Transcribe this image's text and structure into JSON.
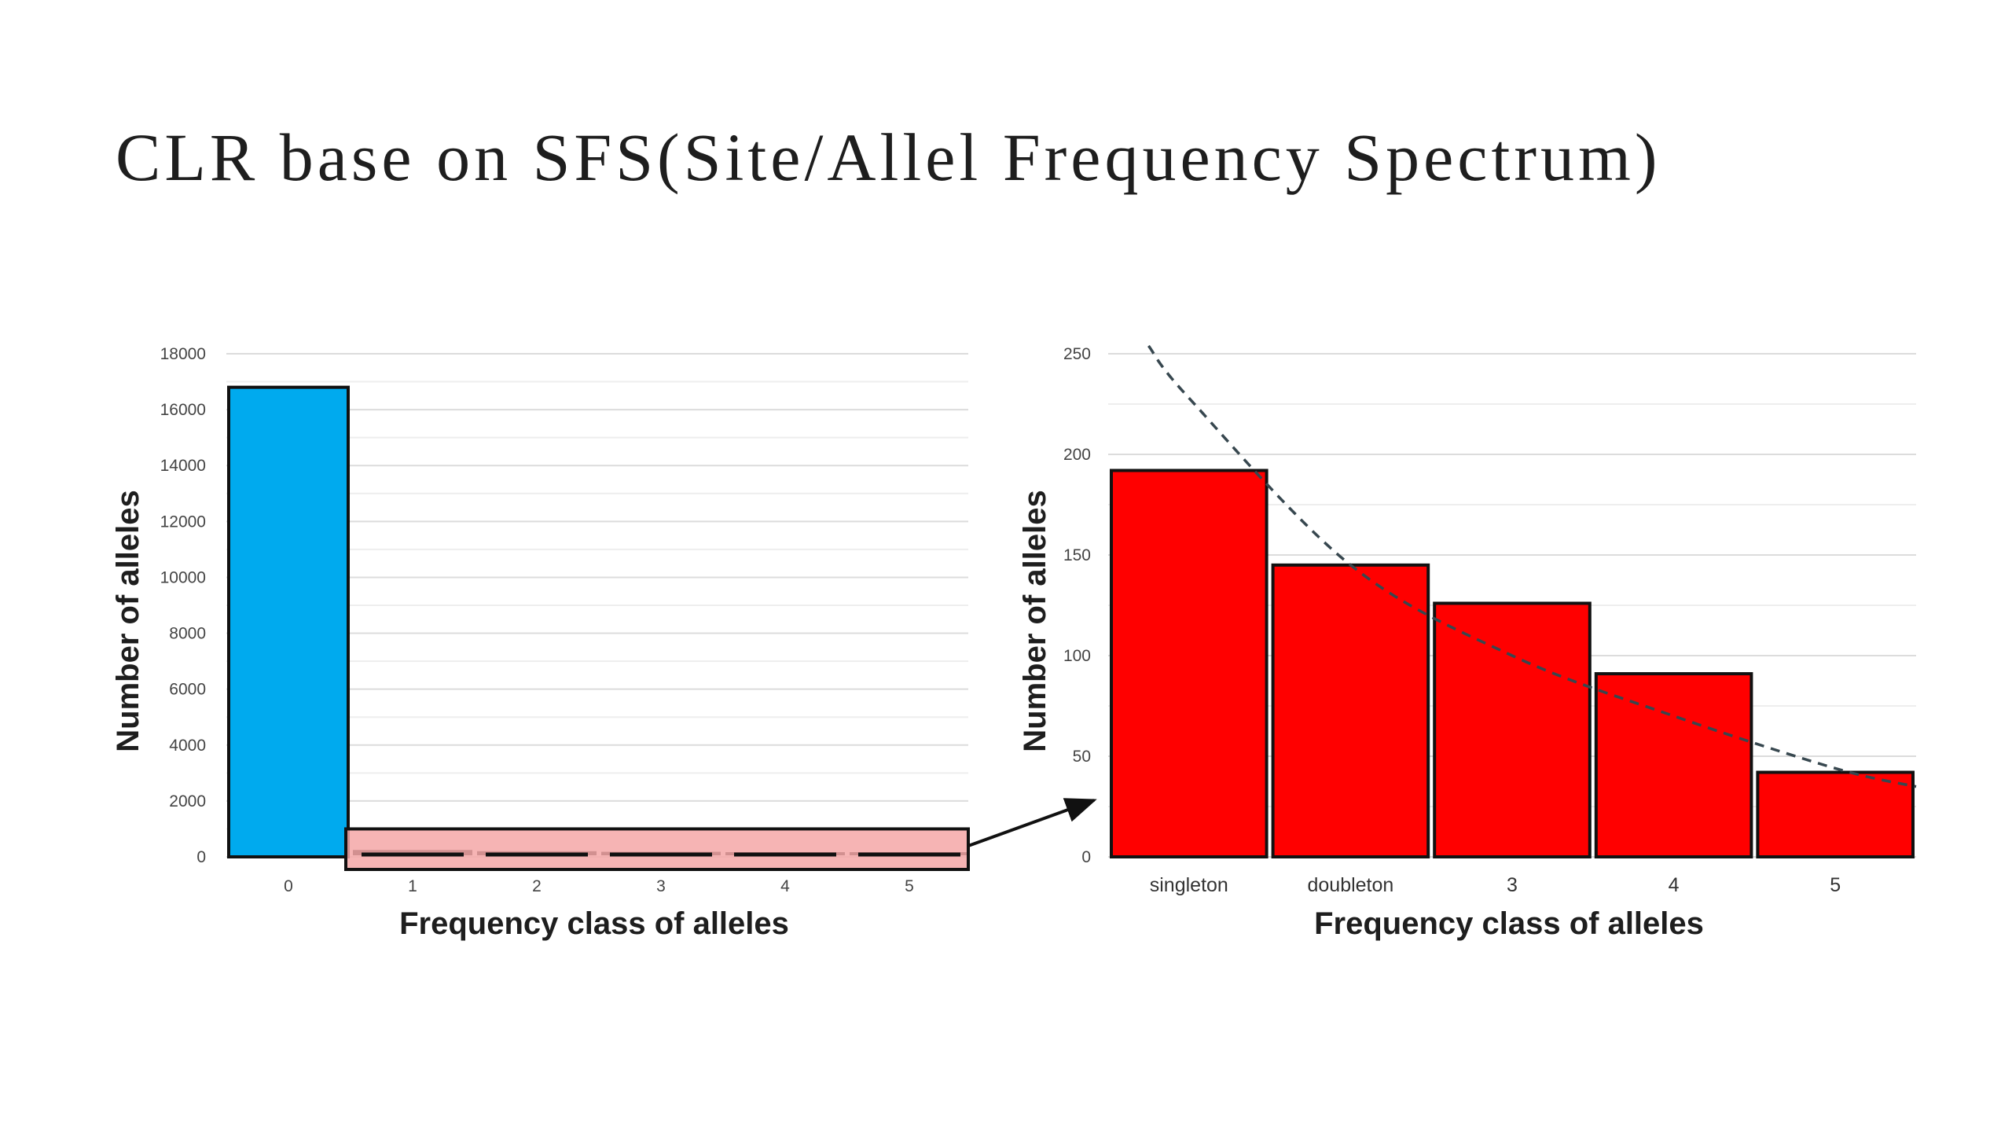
{
  "slide": {
    "title": "CLR base on SFS(Site/Allel Frequency Spectrum)"
  },
  "colors": {
    "left_primary": "#00aaee",
    "left_secondary": "#f4a7a7",
    "right_bars": "#ff0000",
    "outline": "#111111",
    "grid": "#e6e6e6",
    "trend": "#37474f"
  },
  "chart_data": [
    {
      "type": "bar",
      "categories": [
        "0",
        "1",
        "2",
        "3",
        "4",
        "5"
      ],
      "values": [
        16800,
        190,
        145,
        125,
        90,
        40
      ],
      "title": "",
      "xlabel": "Frequency class of alleles",
      "ylabel": "Number of alleles",
      "ylim": [
        0,
        18000
      ],
      "yticks": [
        "0",
        "2000",
        "4000",
        "6000",
        "8000",
        "10000",
        "12000",
        "14000",
        "16000",
        "18000"
      ],
      "grid": true,
      "highlight_range": [
        "1",
        "5"
      ],
      "highlight_range_height": 1000
    },
    {
      "type": "bar",
      "categories": [
        "singleton",
        "doubleton",
        "3",
        "4",
        "5"
      ],
      "values": [
        192,
        145,
        126,
        91,
        42
      ],
      "title": "",
      "xlabel": "Frequency class of alleles",
      "ylabel": "Number of alleles",
      "ylim": [
        0,
        250
      ],
      "yticks": [
        "0",
        "50",
        "100",
        "150",
        "200",
        "250"
      ],
      "grid": true,
      "trend_line": {
        "style": "dashed",
        "x": [
          1,
          2,
          3,
          4,
          5
        ],
        "y": [
          228,
          145,
          100,
          70,
          44
        ]
      }
    }
  ]
}
